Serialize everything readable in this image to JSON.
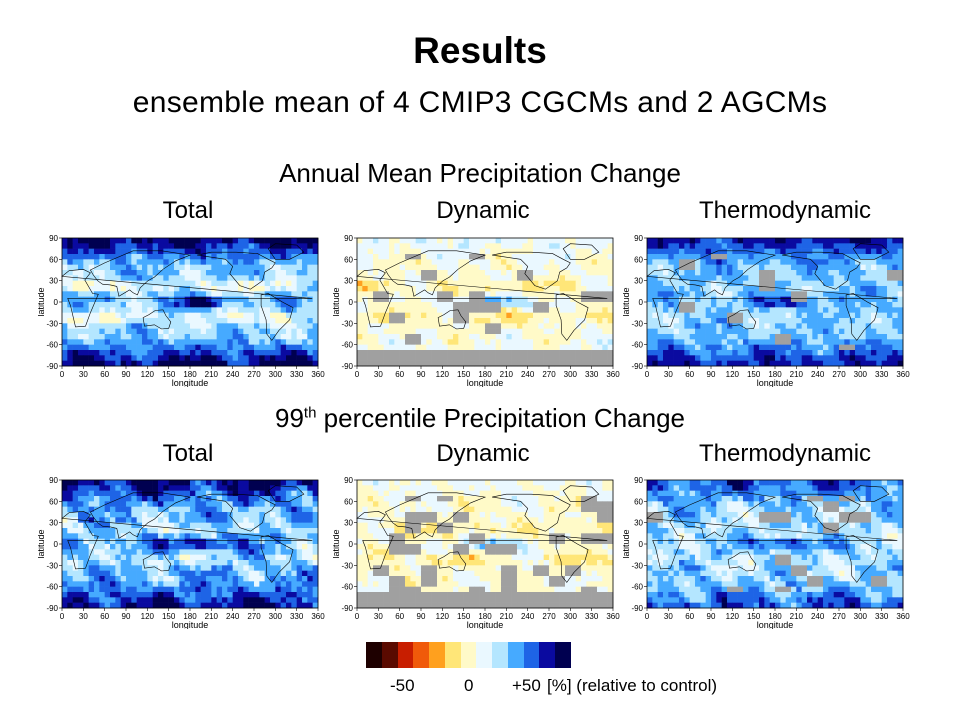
{
  "header": {
    "title": "Results",
    "subtitle": "ensemble mean of 4 CMIP3 CGCMs and 2 AGCMs"
  },
  "sections": [
    {
      "title": "Annual Mean Precipitation Change"
    },
    {
      "title_number": "99",
      "title_sup": "th",
      "title_rest": " percentile Precipitation Change"
    }
  ],
  "columns": [
    "Total",
    "Dynamic",
    "Thermodynamic"
  ],
  "axes": {
    "y_ticks": [
      "90",
      "60",
      "30",
      "0",
      "-30",
      "-60",
      "-90"
    ],
    "x_ticks": [
      "0",
      "30",
      "60",
      "90",
      "120",
      "150",
      "180",
      "210",
      "240",
      "270",
      "300",
      "330",
      "360"
    ],
    "y_label": "latitude",
    "x_label": "longitude"
  },
  "panel_styles": [
    "total-annual",
    "dynamic-annual",
    "thermo-annual",
    "total-99",
    "dynamic-99",
    "thermo-99"
  ],
  "colorbar": {
    "colors": [
      "#1e0000",
      "#5a0a00",
      "#c81e00",
      "#f05a0a",
      "#ffa01e",
      "#ffe678",
      "#fffac8",
      "#eaf8ff",
      "#b4e6ff",
      "#46aaff",
      "#1e64e6",
      "#0a0aa0",
      "#000050"
    ],
    "label_minus": "-50",
    "label_zero": "0",
    "label_plus": "+50",
    "units": "[%] (relative to control)"
  },
  "map_legend": {
    "gray": "#a0a0a0",
    "coast": "#000000"
  }
}
